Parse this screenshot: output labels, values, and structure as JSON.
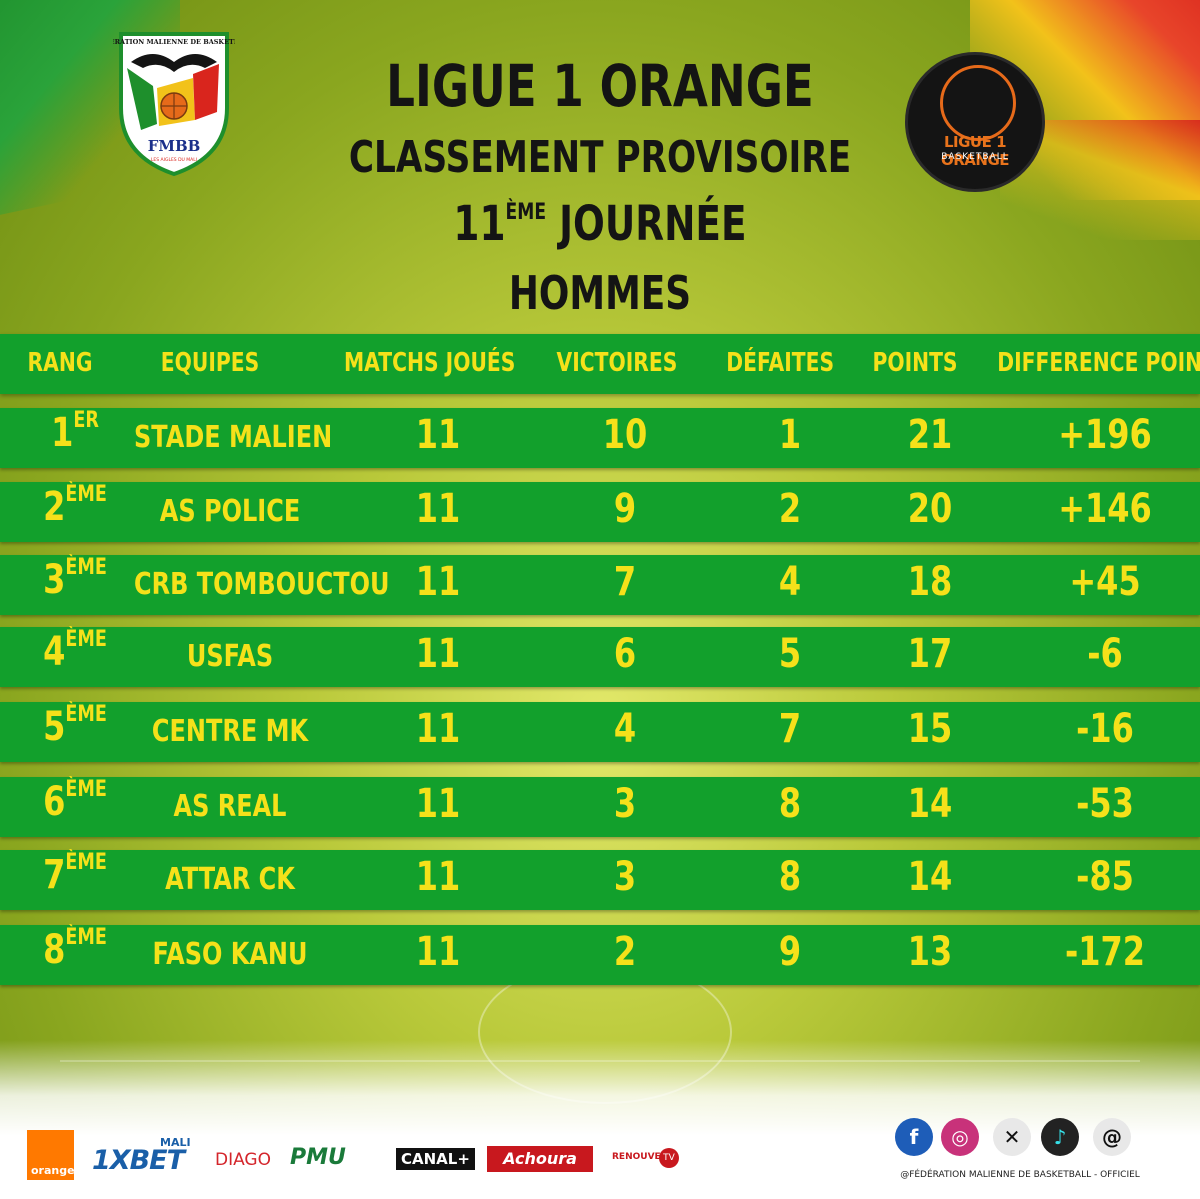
{
  "logos": {
    "fmbb": {
      "top_text": "FEDERATION MALIENNE DE BASKETBALL",
      "acronym": "FMBB",
      "motto": "LES AIGLES DU MALI"
    },
    "ligue": {
      "title": "LIGUE 1 ORANGE",
      "subtitle": "BASKETBALL"
    }
  },
  "titles": {
    "line1": "LIGUE 1 ORANGE",
    "line2": "CLASSEMENT PROVISOIRE",
    "line3_number": "11",
    "line3_sup": "ÈME",
    "line3_word": " JOURNÉE",
    "line4": "HOMMES"
  },
  "table": {
    "headers": [
      "RANG",
      "EQUIPES",
      "MATCHS JOUÉS",
      "VICTOIRES",
      "DÉFAITES",
      "POINTS",
      "DIFFERENCE POINTS"
    ],
    "rows": [
      {
        "rank": "1",
        "suffix": "ER",
        "team": "STADE MALIEN",
        "played": "11",
        "wins": "10",
        "losses": "1",
        "points": "21",
        "diff": "+196"
      },
      {
        "rank": "2",
        "suffix": "ÈME",
        "team": "AS POLICE",
        "played": "11",
        "wins": "9",
        "losses": "2",
        "points": "20",
        "diff": "+146"
      },
      {
        "rank": "3",
        "suffix": "ÈME",
        "team": "CRB TOMBOUCTOU",
        "played": "11",
        "wins": "7",
        "losses": "4",
        "points": "18",
        "diff": "+45"
      },
      {
        "rank": "4",
        "suffix": "ÈME",
        "team": "USFAS",
        "played": "11",
        "wins": "6",
        "losses": "5",
        "points": "17",
        "diff": "-6"
      },
      {
        "rank": "5",
        "suffix": "ÈME",
        "team": "CENTRE MK",
        "played": "11",
        "wins": "4",
        "losses": "7",
        "points": "15",
        "diff": "-16"
      },
      {
        "rank": "6",
        "suffix": "ÈME",
        "team": "AS REAL",
        "played": "11",
        "wins": "3",
        "losses": "8",
        "points": "14",
        "diff": "-53"
      },
      {
        "rank": "7",
        "suffix": "ÈME",
        "team": "ATTAR CK",
        "played": "11",
        "wins": "3",
        "losses": "8",
        "points": "14",
        "diff": "-85"
      },
      {
        "rank": "8",
        "suffix": "ÈME",
        "team": "FASO KANU",
        "played": "11",
        "wins": "2",
        "losses": "9",
        "points": "13",
        "diff": "-172"
      }
    ]
  },
  "sponsors": {
    "orange": "orange",
    "onexbet": "1XBET",
    "onexbet_mali": "MALI",
    "diago": "DIAGO",
    "pmu": "PMU",
    "canal": "CANAL+",
    "achoura": "Achoura",
    "renouveau": "RENOUVEAU",
    "renouveau_tv": "TV"
  },
  "social": {
    "icons": [
      "facebook-icon",
      "instagram-icon",
      "x-icon",
      "tiktok-icon",
      "threads-icon"
    ],
    "handle": "@FÉDÉRATION MALIENNE DE BASKETBALL - OFFICIEL"
  },
  "colors": {
    "band_green": "#12a02c",
    "text_yellow": "#f5e11a",
    "title_dark": "#141414",
    "mali_red": "#d9251d",
    "mali_yellow": "#f2c21a"
  }
}
